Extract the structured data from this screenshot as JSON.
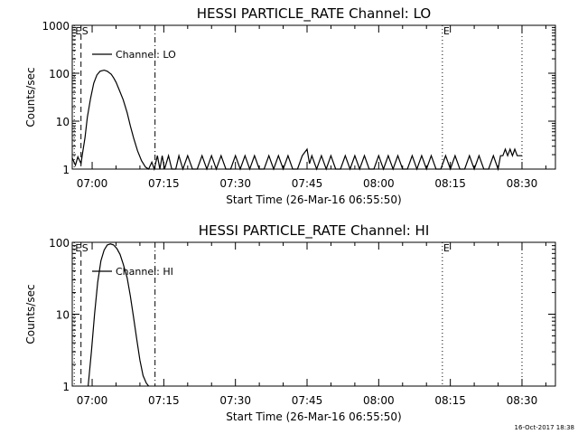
{
  "timestamp": "16-Oct-2017 18:38",
  "chart_data": [
    {
      "type": "line",
      "title": "HESSI PARTICLE_RATE Channel: LO",
      "xlabel": "Start Time (26-Mar-16 06:55:50)",
      "ylabel": "Counts/sec",
      "yscale": "log",
      "ylim": [
        1,
        1000
      ],
      "xlim": [
        "06:55:50",
        "08:37:00"
      ],
      "x_ticks": [
        "07:00",
        "07:15",
        "07:30",
        "07:45",
        "08:00",
        "08:15",
        "08:30"
      ],
      "y_ticks": [
        "1",
        "10",
        "100",
        "1000"
      ],
      "legend": {
        "position": "top-left",
        "label": "Channel: LO"
      },
      "markers": [
        {
          "label": "E",
          "time": "06:56:15",
          "style": "dotted"
        },
        {
          "label": "S",
          "time": "06:57:40",
          "style": "dashed"
        },
        {
          "label": "",
          "time": "07:13:10",
          "style": "dashdot"
        },
        {
          "label": "E",
          "time": "08:13:20",
          "style": "dotted"
        },
        {
          "label": "",
          "time": "08:30:00",
          "style": "dotted"
        }
      ],
      "series": [
        {
          "name": "Channel: LO",
          "x": [
            "06:55:50",
            "06:56:30",
            "06:57:00",
            "06:57:40",
            "06:58:00",
            "06:58:30",
            "06:59:00",
            "06:59:40",
            "07:00:20",
            "07:01:00",
            "07:01:40",
            "07:02:30",
            "07:03:10",
            "07:04:00",
            "07:04:30",
            "07:05:00",
            "07:05:40",
            "07:06:30",
            "07:07:20",
            "07:08:00",
            "07:08:40",
            "07:09:30",
            "07:10:20",
            "07:11:10",
            "07:11:50",
            "07:12:30",
            "07:13:00",
            "07:13:40",
            "07:14:10",
            "07:14:40",
            "07:15:10",
            "07:16:00",
            "07:16:40",
            "07:17:30",
            "07:18:10",
            "07:19:00",
            "07:20:00",
            "07:21:00",
            "07:22:00",
            "07:23:00",
            "07:24:00",
            "07:25:00",
            "07:26:00",
            "07:27:00",
            "07:28:00",
            "07:29:00",
            "07:30:00",
            "07:31:00",
            "07:32:00",
            "07:33:00",
            "07:34:00",
            "07:35:00",
            "07:36:00",
            "07:37:00",
            "07:38:00",
            "07:39:00",
            "07:40:00",
            "07:41:00",
            "07:42:00",
            "07:43:00",
            "07:44:00",
            "07:45:00",
            "07:45:30",
            "07:46:00",
            "07:47:00",
            "07:48:00",
            "07:49:00",
            "07:50:00",
            "07:51:00",
            "07:52:00",
            "07:53:00",
            "07:54:00",
            "07:55:00",
            "07:56:00",
            "07:57:00",
            "07:58:00",
            "07:59:00",
            "08:00:00",
            "08:01:00",
            "08:02:00",
            "08:03:00",
            "08:04:00",
            "08:05:00",
            "08:06:00",
            "08:07:00",
            "08:08:00",
            "08:09:00",
            "08:10:00",
            "08:11:00",
            "08:12:00",
            "08:13:00",
            "08:14:00",
            "08:15:00",
            "08:16:00",
            "08:17:00",
            "08:18:00",
            "08:19:00",
            "08:20:00",
            "08:21:00",
            "08:22:00",
            "08:23:00",
            "08:24:00",
            "08:25:00",
            "08:25:30",
            "08:26:00",
            "08:26:30",
            "08:27:00",
            "08:27:30",
            "08:28:00",
            "08:28:30",
            "08:29:00",
            "08:30:00"
          ],
          "y": [
            1.7,
            1.2,
            1.8,
            1.3,
            2.2,
            4.5,
            12,
            30,
            62,
            92,
            110,
            116,
            110,
            95,
            80,
            65,
            45,
            28,
            15,
            8,
            4.5,
            2.4,
            1.5,
            1.1,
            1,
            1.4,
            1,
            1.9,
            1,
            1.9,
            1,
            1.9,
            1,
            1,
            1.9,
            1,
            1.9,
            1,
            1,
            1.9,
            1,
            1.9,
            1,
            1.9,
            1,
            1,
            1.9,
            1,
            1.9,
            1,
            1.9,
            1,
            1,
            1.9,
            1,
            1.9,
            1,
            1.9,
            1,
            1,
            1.9,
            2.6,
            1.3,
            1.9,
            1,
            1.9,
            1,
            1.9,
            1,
            1,
            1.9,
            1,
            1.9,
            1,
            1.9,
            1,
            1,
            1.9,
            1,
            1.9,
            1,
            1.9,
            1,
            1,
            1.9,
            1,
            1.9,
            1,
            1.9,
            1,
            1,
            1.9,
            1,
            1.9,
            1,
            1,
            1.9,
            1,
            1.9,
            1,
            1,
            1.9,
            1,
            1.9,
            1.9,
            2.6,
            1.9,
            2.6,
            1.9,
            2.6,
            1.9,
            1.9
          ]
        }
      ]
    },
    {
      "type": "line",
      "title": "HESSI PARTICLE_RATE Channel: HI",
      "xlabel": "Start Time (26-Mar-16 06:55:50)",
      "ylabel": "Counts/sec",
      "yscale": "log",
      "ylim": [
        1,
        100
      ],
      "xlim": [
        "06:55:50",
        "08:37:00"
      ],
      "x_ticks": [
        "07:00",
        "07:15",
        "07:30",
        "07:45",
        "08:00",
        "08:15",
        "08:30"
      ],
      "y_ticks": [
        "1",
        "10",
        "100"
      ],
      "legend": {
        "position": "top-left",
        "label": "Channel: HI"
      },
      "markers": [
        {
          "label": "E",
          "time": "06:56:15",
          "style": "dotted"
        },
        {
          "label": "S",
          "time": "06:57:40",
          "style": "dashed"
        },
        {
          "label": "",
          "time": "07:13:10",
          "style": "dashdot"
        },
        {
          "label": "E",
          "time": "08:13:20",
          "style": "dotted"
        },
        {
          "label": "",
          "time": "08:30:00",
          "style": "dotted"
        }
      ],
      "series": [
        {
          "name": "Channel: HI",
          "x": [
            "06:59:10",
            "06:59:50",
            "07:00:30",
            "07:01:10",
            "07:01:50",
            "07:02:30",
            "07:03:10",
            "07:03:50",
            "07:04:30",
            "07:05:10",
            "07:05:50",
            "07:06:30",
            "07:07:20",
            "07:08:00",
            "07:08:40",
            "07:09:20",
            "07:10:00",
            "07:10:40",
            "07:11:20",
            "07:11:50"
          ],
          "y": [
            1,
            3,
            10,
            28,
            55,
            78,
            92,
            95,
            92,
            82,
            68,
            50,
            32,
            18,
            9,
            4.5,
            2.3,
            1.4,
            1.1,
            1
          ]
        }
      ]
    }
  ]
}
